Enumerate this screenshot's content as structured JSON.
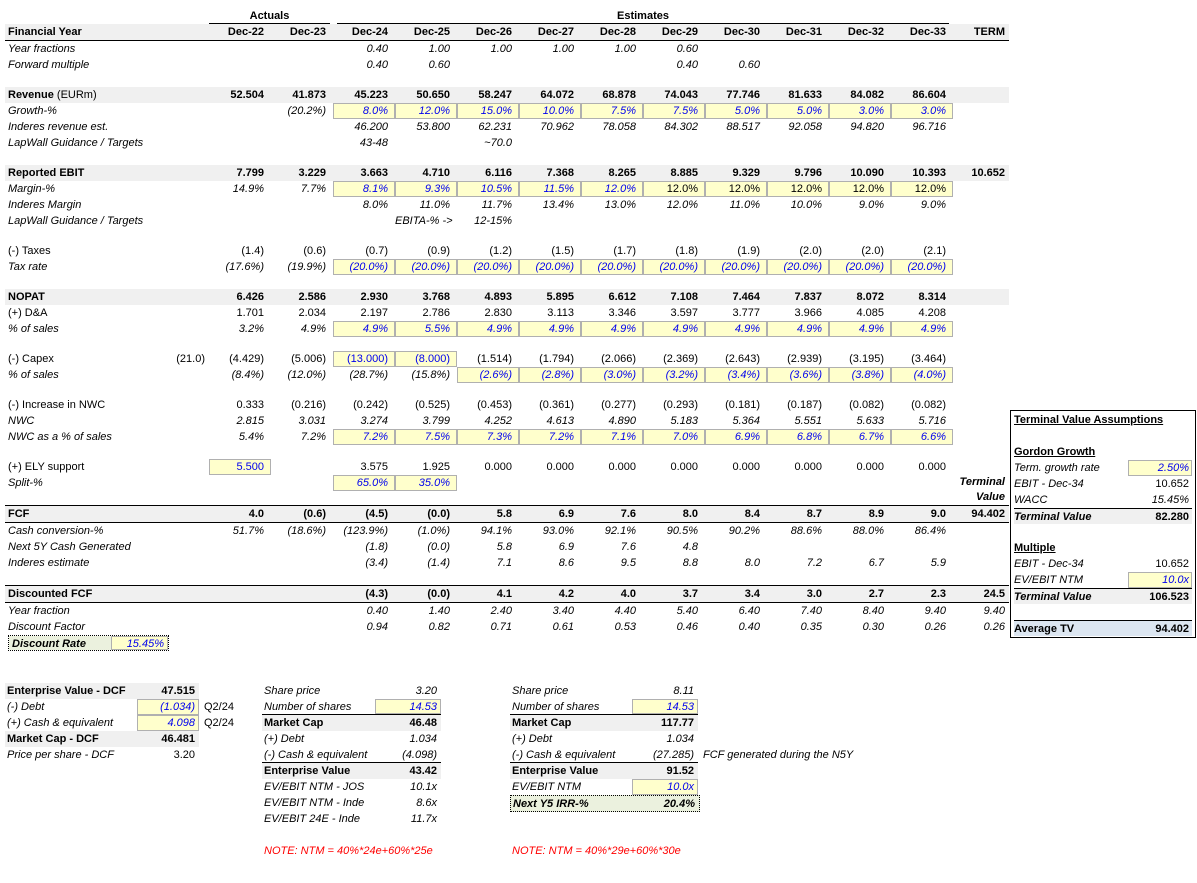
{
  "colors": {
    "input_yellow": "#FFFFCC",
    "input_blue": "#0000EE",
    "section_gray": "#F0F0F0",
    "highlight_green": "#EBF1DE",
    "average_blue": "#DCE6F1",
    "note_red": "#FF0000"
  },
  "table": {
    "groups": {
      "actuals": "Actuals",
      "estimates": "Estimates"
    },
    "rows": [
      {
        "name": "financial-year",
        "label": "Financial Year",
        "lc": "b",
        "rc": "fy",
        "cells": [
          "",
          "Dec-22",
          "Dec-23",
          "Dec-24",
          "Dec-25",
          "Dec-26",
          "Dec-27",
          "Dec-28",
          "Dec-29",
          "Dec-30",
          "Dec-31",
          "Dec-32",
          "Dec-33",
          "TERM"
        ]
      },
      {
        "label": "Year fractions",
        "lc": "i",
        "cells": [
          "",
          "",
          "",
          "0.40|i",
          "1.00|i",
          "1.00|i",
          "1.00|i",
          "1.00|i",
          "0.60|i",
          "",
          "",
          "",
          "",
          ""
        ]
      },
      {
        "label": "Forward multiple",
        "lc": "i",
        "cells": [
          "",
          "",
          "",
          "0.40|i",
          "0.60|i",
          "",
          "",
          "",
          "0.40|i",
          "0.60|i",
          "",
          "",
          "",
          ""
        ]
      },
      {
        "rc": "sp"
      },
      {
        "label": "Revenue",
        "label2": " (EURm)",
        "lc": "b",
        "rc": "hdr",
        "cells": [
          "",
          "52.504",
          "41.873",
          "45.223",
          "50.650",
          "58.247",
          "64.072",
          "68.878",
          "74.043",
          "77.746",
          "81.633",
          "84.082",
          "86.604",
          ""
        ]
      },
      {
        "label": "Growth-%",
        "lc": "i",
        "cells": [
          "",
          "",
          "(20.2%)|i",
          "8.0%|y blu i",
          "12.0%|y blu i",
          "15.0%|y blu i",
          "10.0%|y blu i",
          "7.5%|y blu i",
          "7.5%|y blu i",
          "5.0%|y blu i",
          "5.0%|y blu i",
          "3.0%|y blu i",
          "3.0%|y blu i",
          ""
        ]
      },
      {
        "label": "Inderes revenue est.",
        "lc": "i",
        "cells": [
          "",
          "",
          "",
          "46.200|i",
          "53.800|i",
          "62.231|i",
          "70.962|i",
          "78.058|i",
          "84.302|i",
          "88.517|i",
          "92.058|i",
          "94.820|i",
          "96.716|i",
          ""
        ]
      },
      {
        "label": "LapWall Guidance / Targets",
        "lc": "i",
        "cells": [
          "",
          "",
          "",
          "43-48|i",
          "",
          "~70.0|i",
          "",
          "",
          "",
          "",
          "",
          "",
          "",
          ""
        ]
      },
      {
        "rc": "sp"
      },
      {
        "label": "Reported EBIT",
        "lc": "b",
        "rc": "hdr",
        "cells": [
          "",
          "7.799",
          "3.229",
          "3.663",
          "4.710",
          "6.116",
          "7.368",
          "8.265",
          "8.885",
          "9.329",
          "9.796",
          "10.090",
          "10.393",
          "10.652"
        ]
      },
      {
        "label": "Margin-%",
        "lc": "i",
        "cells": [
          "",
          "14.9%|i",
          "7.7%|i",
          "8.1%|y blu i",
          "9.3%|y blu i",
          "10.5%|y blu i",
          "11.5%|y blu i",
          "12.0%|y blu i",
          "12.0%|y",
          "12.0%|y",
          "12.0%|y",
          "12.0%|y",
          "12.0%|y",
          ""
        ]
      },
      {
        "label": "Inderes Margin",
        "lc": "i",
        "cells": [
          "",
          "",
          "",
          "8.0%|i",
          "11.0%|i",
          "11.7%|i",
          "13.4%|i",
          "13.0%|i",
          "12.0%|i",
          "11.0%|i",
          "10.0%|i",
          "9.0%|i",
          "9.0%|i",
          ""
        ]
      },
      {
        "label": "LapWall Guidance / Targets",
        "lc": "i",
        "cells": [
          "",
          "",
          "",
          "",
          "EBITA-% ->|i",
          "12-15%|i",
          "",
          "",
          "",
          "",
          "",
          "",
          "",
          ""
        ]
      },
      {
        "rc": "sp"
      },
      {
        "label": "(-) Taxes",
        "cells": [
          "",
          "(1.4)",
          "(0.6)",
          "(0.7)",
          "(0.9)",
          "(1.2)",
          "(1.5)",
          "(1.7)",
          "(1.8)",
          "(1.9)",
          "(2.0)",
          "(2.0)",
          "(2.1)",
          ""
        ]
      },
      {
        "label": "Tax rate",
        "lc": "i",
        "cells": [
          "",
          "(17.6%)|i",
          "(19.9%)|i",
          "(20.0%)|y blu i",
          "(20.0%)|y blu i",
          "(20.0%)|y blu i",
          "(20.0%)|y blu i",
          "(20.0%)|y blu i",
          "(20.0%)|y blu i",
          "(20.0%)|y blu i",
          "(20.0%)|y blu i",
          "(20.0%)|y blu i",
          "(20.0%)|y blu i",
          ""
        ]
      },
      {
        "rc": "sp"
      },
      {
        "label": "NOPAT",
        "lc": "b",
        "rc": "hdr",
        "cells": [
          "",
          "6.426",
          "2.586",
          "2.930",
          "3.768",
          "4.893",
          "5.895",
          "6.612",
          "7.108",
          "7.464",
          "7.837",
          "8.072",
          "8.314",
          ""
        ]
      },
      {
        "label": "(+) D&A",
        "cells": [
          "",
          "1.701",
          "2.034",
          "2.197",
          "2.786",
          "2.830",
          "3.113",
          "3.346",
          "3.597",
          "3.777",
          "3.966",
          "4.085",
          "4.208",
          ""
        ]
      },
      {
        "label": "% of sales",
        "lc": "i",
        "cells": [
          "",
          "3.2%|i",
          "4.9%|i",
          "4.9%|y blu i",
          "5.5%|y blu i",
          "4.9%|y blu i",
          "4.9%|y blu i",
          "4.9%|y blu i",
          "4.9%|y blu i",
          "4.9%|y blu i",
          "4.9%|y blu i",
          "4.9%|y blu i",
          "4.9%|y blu i",
          ""
        ]
      },
      {
        "rc": "sp"
      },
      {
        "label": "(-) Capex",
        "cells": [
          "(21.0)",
          "(4.429)",
          "(5.006)",
          "(13.000)|y blu",
          "(8.000)|y blu",
          "(1.514)",
          "(1.794)",
          "(2.066)",
          "(2.369)",
          "(2.643)",
          "(2.939)",
          "(3.195)",
          "(3.464)",
          ""
        ]
      },
      {
        "label": "% of sales",
        "lc": "i",
        "cells": [
          "",
          "(8.4%)|i",
          "(12.0%)|i",
          "(28.7%)|i",
          "(15.8%)|i",
          "(2.6%)|y blu i",
          "(2.8%)|y blu i",
          "(3.0%)|y blu i",
          "(3.2%)|y blu i",
          "(3.4%)|y blu i",
          "(3.6%)|y blu i",
          "(3.8%)|y blu i",
          "(4.0%)|y blu i",
          ""
        ]
      },
      {
        "rc": "sp"
      },
      {
        "label": "(-) Increase in NWC",
        "cells": [
          "",
          "0.333",
          "(0.216)",
          "(0.242)",
          "(0.525)",
          "(0.453)",
          "(0.361)",
          "(0.277)",
          "(0.293)",
          "(0.181)",
          "(0.187)",
          "(0.082)",
          "(0.082)",
          ""
        ]
      },
      {
        "label": "NWC",
        "lc": "i",
        "cells": [
          "",
          "2.815|i",
          "3.031|i",
          "3.274|i",
          "3.799|i",
          "4.252|i",
          "4.613|i",
          "4.890|i",
          "5.183|i",
          "5.364|i",
          "5.551|i",
          "5.633|i",
          "5.716|i",
          ""
        ]
      },
      {
        "label": "NWC as a % of sales",
        "lc": "i",
        "cells": [
          "",
          "5.4%|i",
          "7.2%|i",
          "7.2%|y blu i",
          "7.5%|y blu i",
          "7.3%|y blu i",
          "7.2%|y blu i",
          "7.1%|y blu i",
          "7.0%|y blu i",
          "6.9%|y blu i",
          "6.8%|y blu i",
          "6.7%|y blu i",
          "6.6%|y blu i",
          ""
        ]
      },
      {
        "rc": "sp"
      },
      {
        "label": "(+) ELY support",
        "cells": [
          "",
          "5.500|y blu",
          "",
          "3.575",
          "1.925",
          "0.000",
          "0.000",
          "0.000",
          "0.000",
          "0.000",
          "0.000",
          "0.000",
          "0.000",
          ""
        ]
      },
      {
        "label": "Split-%",
        "lc": "i",
        "cells": [
          "",
          "",
          "",
          "65.0%|y blu i",
          "35.0%|y blu i",
          "",
          "",
          "",
          "",
          "",
          "",
          "",
          "",
          "Terminal\nValue|tnote"
        ]
      },
      {
        "rc": "sp"
      },
      {
        "name": "fcf-row",
        "label": "FCF",
        "lc": "b",
        "rc": "total",
        "cells": [
          "",
          "4.0",
          "(0.6)",
          "(4.5)",
          "(0.0)",
          "5.8",
          "6.9",
          "7.6",
          "8.0",
          "8.4",
          "8.7",
          "8.9",
          "9.0",
          "94.402"
        ]
      },
      {
        "label": "Cash conversion-%",
        "lc": "i",
        "cells": [
          "",
          "51.7%|i",
          "(18.6%)|i",
          "(123.9%)|i",
          "(1.0%)|i",
          "94.1%|i",
          "93.0%|i",
          "92.1%|i",
          "90.5%|i",
          "90.2%|i",
          "88.6%|i",
          "88.0%|i",
          "86.4%|i",
          ""
        ]
      },
      {
        "label": "Next 5Y Cash Generated",
        "lc": "i",
        "cells": [
          "",
          "",
          "",
          "(1.8)|i",
          "(0.0)|i",
          "5.8|i",
          "6.9|i",
          "7.6|i",
          "4.8|i",
          "",
          "",
          "",
          "",
          ""
        ]
      },
      {
        "label": "Inderes estimate",
        "lc": "i",
        "cells": [
          "",
          "",
          "",
          "(3.4)|i",
          "(1.4)|i",
          "7.1|i",
          "8.6|i",
          "9.5|i",
          "8.8|i",
          "8.0|i",
          "7.2|i",
          "6.7|i",
          "5.9|i",
          ""
        ]
      },
      {
        "rc": "sp"
      },
      {
        "name": "discounted-fcf-row",
        "label": "Discounted FCF",
        "lc": "b",
        "rc": "total",
        "cells": [
          "",
          "",
          "",
          "(4.3)",
          "(0.0)",
          "4.1",
          "4.2",
          "4.0",
          "3.7",
          "3.4",
          "3.0",
          "2.7",
          "2.3",
          "24.5"
        ]
      },
      {
        "label": "Year fraction",
        "lc": "i",
        "cells": [
          "",
          "",
          "",
          "0.40|i",
          "1.40|i",
          "2.40|i",
          "3.40|i",
          "4.40|i",
          "5.40|i",
          "6.40|i",
          "7.40|i",
          "8.40|i",
          "9.40|i",
          "9.40|i"
        ]
      },
      {
        "label": "Discount Factor",
        "lc": "i",
        "cells": [
          "",
          "",
          "",
          "0.94|i",
          "0.82|i",
          "0.71|i",
          "0.61|i",
          "0.53|i",
          "0.46|i",
          "0.40|i",
          "0.35|i",
          "0.30|i",
          "0.26|i",
          "0.26|i"
        ]
      },
      {
        "name": "discount-rate",
        "rc": "dr",
        "label": "Discount Rate",
        "value": "15.45%"
      }
    ]
  },
  "blocks": {
    "evdcf": {
      "rows": [
        [
          "Enterprise Value - DCF|b",
          "47.515|b",
          "",
          "hdr"
        ],
        [
          "(-) Debt|i",
          "(1.034)|y blu i",
          "Q2/24",
          ""
        ],
        [
          "(+) Cash & equivalent|i",
          "4.098|y blu i",
          "Q2/24",
          ""
        ],
        [
          "Market Cap - DCF|b",
          "46.481|b",
          "",
          "hdr"
        ],
        [
          "Price per share - DCF|i",
          "3.20",
          "",
          ""
        ]
      ]
    },
    "mid": {
      "rows": [
        [
          "Share price|i",
          "3.20|i",
          "",
          ""
        ],
        [
          "Number of shares|i",
          "14.53|y blu i",
          "",
          "bb"
        ],
        [
          "Market Cap|b",
          "46.48|b",
          "",
          "hdr"
        ],
        [
          "(+) Debt|i",
          "1.034|i",
          "",
          ""
        ],
        [
          "(-) Cash & equivalent|i",
          "(4.098)|i",
          "",
          "bb"
        ],
        [
          "Enterprise Value|b",
          "43.42|b",
          "",
          "hdr"
        ],
        [
          "EV/EBIT NTM - JOS|i",
          "10.1x|i",
          "",
          ""
        ],
        [
          "EV/EBIT NTM - Inde|i",
          "8.6x|i",
          "",
          ""
        ],
        [
          "EV/EBIT 24E - Inde|i",
          "11.7x|i",
          "",
          ""
        ]
      ],
      "note": "NOTE: NTM = 40%*24e+60%*25e"
    },
    "rt": {
      "rows": [
        [
          "Share price|i",
          "8.11|i",
          "",
          ""
        ],
        [
          "Number of shares|i",
          "14.53|y blu i",
          "",
          "bb"
        ],
        [
          "Market Cap|b",
          "117.77|b",
          "",
          "hdr"
        ],
        [
          "(+) Debt|i",
          "1.034|i",
          "",
          ""
        ],
        [
          "(-) Cash & equivalent|i",
          "(27.285)|i",
          "FCF generated during the N5Y|i",
          "bb"
        ],
        [
          "Enterprise Value|b",
          "91.52|b",
          "",
          "hdr"
        ],
        [
          "EV/EBIT NTM|i",
          "10.0x|y blu i",
          "",
          ""
        ],
        [
          "Next Y5 IRR-%|b i",
          "20.4%|b i",
          "",
          "green"
        ]
      ],
      "note": "NOTE: NTM = 40%*29e+60%*30e"
    }
  },
  "panel": {
    "title": "Terminal Value Assumptions",
    "rows": [
      [
        "Gordon Growth|b u",
        "",
        "gap"
      ],
      [
        "Term. growth rate|i",
        "2.50%|y blu i",
        ""
      ],
      [
        "EBIT - Dec-34|i",
        "10.652",
        ""
      ],
      [
        "WACC|i",
        "15.45%|i",
        ""
      ],
      [
        "Terminal Value|b i",
        "82.280|b",
        "hdr tb"
      ],
      [
        "Multiple|b u",
        "",
        "gap"
      ],
      [
        "EBIT - Dec-34|i",
        "10.652",
        ""
      ],
      [
        "EV/EBIT NTM|i",
        "10.0x|y blu i",
        ""
      ],
      [
        "Terminal Value|b i",
        "106.523|b",
        "hdr tb"
      ],
      [
        "Average TV|b",
        "94.402|b",
        "blue tb gap"
      ]
    ]
  }
}
